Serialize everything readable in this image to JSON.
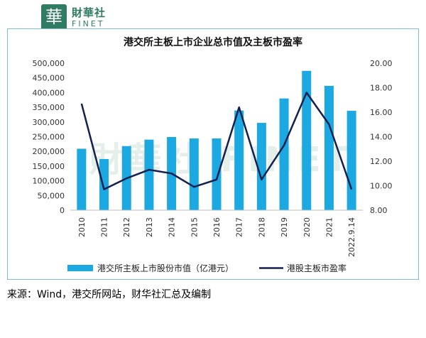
{
  "logo": {
    "mark": "華",
    "name_cn": "財華社",
    "name_en": "FINET"
  },
  "source": "来源：Wind，港交所网站，财华社汇总及编制",
  "chart_data": {
    "type": "bar",
    "title": "港交所主板上市企业总市值及主板市盈率",
    "categories": [
      "2010",
      "2011",
      "2012",
      "2013",
      "2014",
      "2015",
      "2016",
      "2017",
      "2018",
      "2019",
      "2020",
      "2021",
      "2022.9.14"
    ],
    "series": [
      {
        "name": "港交所主板上市股份市值（亿港元）",
        "type": "bar",
        "axis": "left",
        "color": "#1ca8e0",
        "values": [
          209000,
          174000,
          218000,
          240000,
          249000,
          244000,
          244000,
          339000,
          297000,
          380000,
          474000,
          423000,
          338000
        ]
      },
      {
        "name": "港股主板市盈率",
        "type": "line",
        "axis": "right",
        "color": "#14204f",
        "values": [
          16.7,
          9.7,
          10.6,
          11.3,
          11.0,
          9.9,
          10.5,
          16.4,
          10.5,
          13.3,
          17.6,
          15.0,
          9.7
        ]
      }
    ],
    "y_left": {
      "min": 0,
      "max": 500000,
      "ticks": [
        0,
        50000,
        100000,
        150000,
        200000,
        250000,
        300000,
        350000,
        400000,
        450000,
        500000
      ],
      "tick_labels": [
        "0",
        "50,000",
        "100,000",
        "150,000",
        "200,000",
        "250,000",
        "300,000",
        "350,000",
        "400,000",
        "450,000",
        "500,000"
      ]
    },
    "y_right": {
      "min": 8,
      "max": 20,
      "ticks": [
        8,
        10,
        12,
        14,
        16,
        18,
        20
      ],
      "tick_labels": [
        "8.00",
        "10.00",
        "12.00",
        "14.00",
        "16.00",
        "18.00",
        "20.00"
      ]
    },
    "grid": false,
    "legend": "bottom",
    "watermark": "財華社 FINET"
  }
}
